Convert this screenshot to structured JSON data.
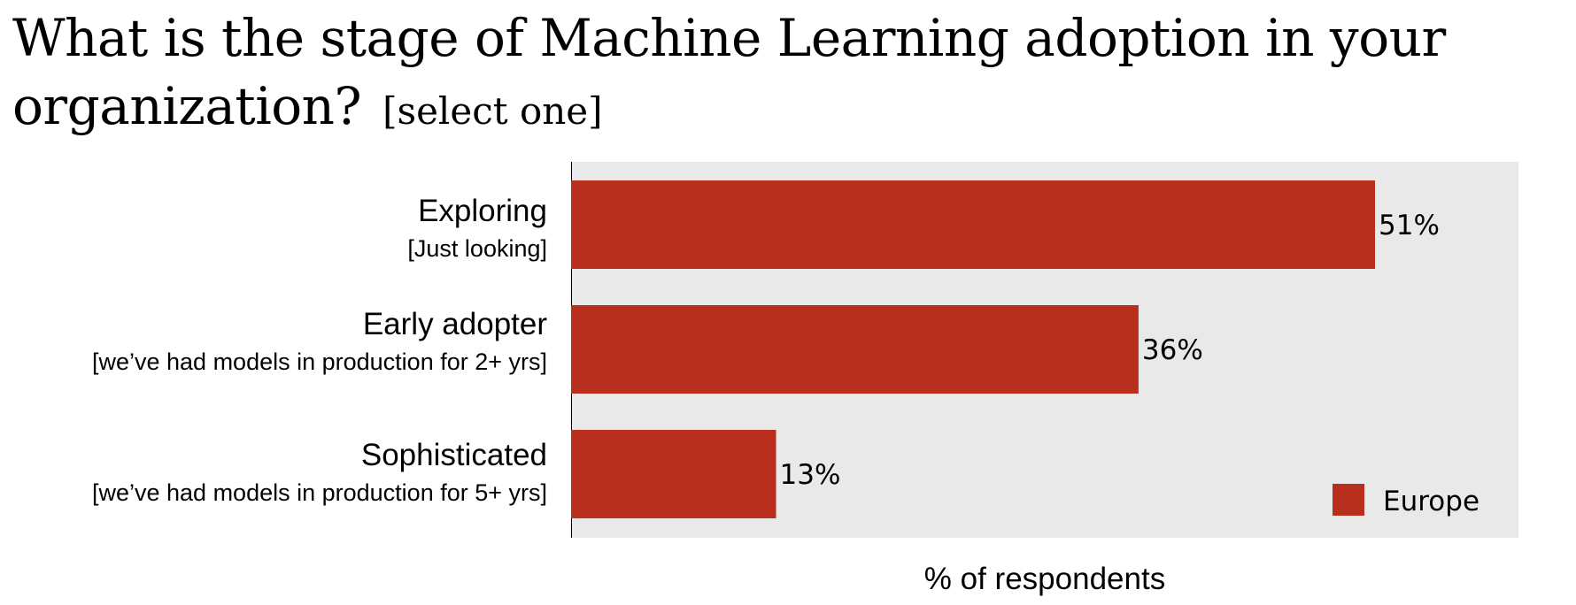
{
  "chart_data": {
    "type": "bar",
    "orientation": "horizontal",
    "title": "What is the stage of Machine Learning adoption in your",
    "title_line2": "organization?",
    "subtitle": "[select one]",
    "categories": [
      {
        "label": "Exploring",
        "sublabel": "[Just looking]"
      },
      {
        "label": "Early adopter",
        "sublabel": "[we’ve had models in production for 2+ yrs]"
      },
      {
        "label": "Sophisticated",
        "sublabel": "[we’ve had models in production for 5+ yrs]"
      }
    ],
    "series": [
      {
        "name": "Europe",
        "values": [
          51,
          36,
          13
        ],
        "value_labels": [
          "51%",
          "36%",
          "13%"
        ],
        "color": "#b8301d"
      }
    ],
    "xlabel": "% of respondents",
    "ylabel": "",
    "xlim": [
      0,
      60
    ],
    "grid": false,
    "legend_position": "bottom-right",
    "plot_background": "#e9e9e9"
  }
}
